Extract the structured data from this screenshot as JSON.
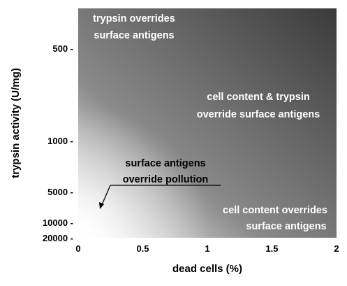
{
  "chart_data": {
    "type": "heatmap",
    "title": "",
    "xlabel": "dead cells (%)",
    "ylabel": "trypsin activity  (U/mg)",
    "xlim": [
      0,
      2
    ],
    "x_ticks": [
      {
        "value": 0,
        "label": "0"
      },
      {
        "value": 0.5,
        "label": "0.5"
      },
      {
        "value": 1,
        "label": "1"
      },
      {
        "value": 1.5,
        "label": "1.5"
      },
      {
        "value": 2,
        "label": "2"
      }
    ],
    "y_ticks": [
      {
        "value": 500,
        "label": "500 -"
      },
      {
        "value": 1000,
        "label": "1000 -"
      },
      {
        "value": 5000,
        "label": "5000 -"
      },
      {
        "value": 10000,
        "label": "10000 -"
      },
      {
        "value": 20000,
        "label": "20000 -"
      }
    ],
    "y_axis_order": "top-to-bottom",
    "gradient": {
      "light_corner": "bottom-left",
      "dark_corner": "top-right",
      "light_color": "#ffffff",
      "dark_color": "#3a3a3a"
    },
    "regions": [
      {
        "lines": [
          "trypsin overrides",
          "surface antigens"
        ],
        "color": "#ffffff",
        "position": "top-left"
      },
      {
        "lines": [
          "cell content & trypsin",
          "override surface antigens"
        ],
        "color": "#ffffff",
        "position": "middle-right"
      },
      {
        "lines": [
          "surface antigens",
          "override pollution"
        ],
        "color": "#000000",
        "position": "lower-left",
        "underline_second_line": true,
        "arrow": true
      },
      {
        "lines": [
          "cell content overrides",
          "surface antigens"
        ],
        "color": "#ffffff",
        "position": "bottom-right"
      }
    ]
  }
}
